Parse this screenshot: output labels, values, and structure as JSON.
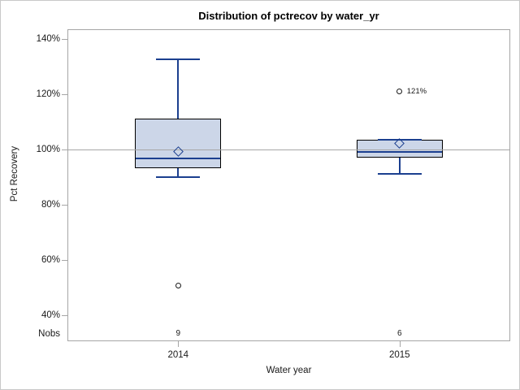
{
  "chart_data": {
    "type": "boxplot",
    "title": "Distribution of pctrecov by water_yr",
    "xlabel": "Water year",
    "ylabel": "Pct Recovery",
    "nobs_row_label": "Nobs",
    "categories": [
      "2014",
      "2015"
    ],
    "y_ticks": [
      {
        "value": 140,
        "label": "140%"
      },
      {
        "value": 120,
        "label": "120%"
      },
      {
        "value": 100,
        "label": "100%"
      },
      {
        "value": 80,
        "label": "80%"
      },
      {
        "value": 60,
        "label": "60%"
      },
      {
        "value": 40,
        "label": "40%"
      }
    ],
    "ylim": [
      40,
      140
    ],
    "grid": "off",
    "legend": "none",
    "reference_line_value": 100,
    "series": [
      {
        "category": "2014",
        "nobs": "9",
        "whisker_low": 90,
        "q1": 93,
        "median": 96.5,
        "q3": 111,
        "whisker_high": 132.5,
        "mean": 99,
        "outliers": [
          {
            "value": 50.5,
            "label": ""
          }
        ]
      },
      {
        "category": "2015",
        "nobs": "6",
        "whisker_low": 91,
        "q1": 97,
        "median": 99,
        "q3": 103.5,
        "whisker_high": 103.5,
        "mean": 102,
        "outliers": [
          {
            "value": 121,
            "label": "121%"
          }
        ]
      }
    ],
    "colors": {
      "box_fill": "#ccd6e8",
      "box_border": "#000000",
      "whisker": "#1b3f8f",
      "outlier_stroke": "#1a1a1a",
      "reference_line": "#a6a6a6",
      "frame": "#a6a6a6",
      "text": "#1a1a1a"
    }
  }
}
